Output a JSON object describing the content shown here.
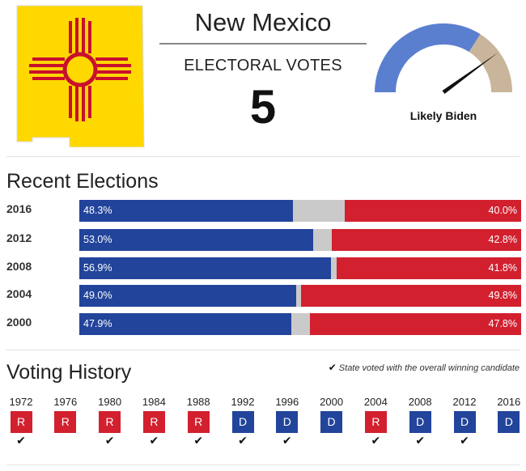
{
  "state": {
    "name": "New Mexico",
    "electoral_label": "ELECTORAL VOTES",
    "electoral_votes": "5",
    "flag_colors": {
      "field": "#ffd800",
      "symbol": "#c8102e"
    }
  },
  "forecast": {
    "label": "Likely Biden",
    "lean_fraction_dem": 0.68,
    "colors": {
      "dem": "#5b7fcf",
      "rep": "#c9b59b",
      "needle": "#111111"
    }
  },
  "recent_elections": {
    "title": "Recent Elections",
    "rows": [
      {
        "year": "2016",
        "dem": 48.3,
        "rep": 40.0,
        "dem_label": "48.3%",
        "rep_label": "40.0%"
      },
      {
        "year": "2012",
        "dem": 53.0,
        "rep": 42.8,
        "dem_label": "53.0%",
        "rep_label": "42.8%"
      },
      {
        "year": "2008",
        "dem": 56.9,
        "rep": 41.8,
        "dem_label": "56.9%",
        "rep_label": "41.8%"
      },
      {
        "year": "2004",
        "dem": 49.0,
        "rep": 49.8,
        "dem_label": "49.0%",
        "rep_label": "49.8%"
      },
      {
        "year": "2000",
        "dem": 47.9,
        "rep": 47.8,
        "dem_label": "47.9%",
        "rep_label": "47.8%"
      }
    ],
    "colors": {
      "dem": "#22449b",
      "rep": "#d2202f",
      "other": "#cacaca"
    }
  },
  "voting_history": {
    "title": "Voting History",
    "legend": "State voted with the overall winning candidate",
    "legend_icon": "check-icon",
    "items": [
      {
        "year": "1972",
        "party": "R",
        "with_winner": true
      },
      {
        "year": "1976",
        "party": "R",
        "with_winner": false
      },
      {
        "year": "1980",
        "party": "R",
        "with_winner": true
      },
      {
        "year": "1984",
        "party": "R",
        "with_winner": true
      },
      {
        "year": "1988",
        "party": "R",
        "with_winner": true
      },
      {
        "year": "1992",
        "party": "D",
        "with_winner": true
      },
      {
        "year": "1996",
        "party": "D",
        "with_winner": true
      },
      {
        "year": "2000",
        "party": "D",
        "with_winner": false
      },
      {
        "year": "2004",
        "party": "R",
        "with_winner": true
      },
      {
        "year": "2008",
        "party": "D",
        "with_winner": true
      },
      {
        "year": "2012",
        "party": "D",
        "with_winner": true
      },
      {
        "year": "2016",
        "party": "D",
        "with_winner": false
      }
    ]
  }
}
